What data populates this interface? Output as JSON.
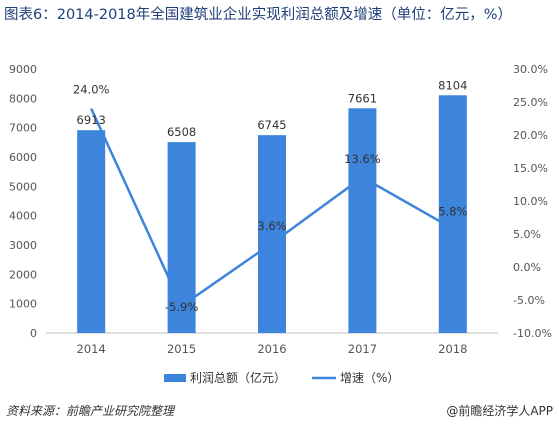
{
  "title": "图表6：2014-2018年全国建筑业企业实现利润总额及增速（单位：亿元，%）",
  "source": "资料来源：前瞻产业研究院整理",
  "brand": "@前瞻经济学人APP",
  "colors": {
    "bar": "#3c84dc",
    "line": "#3c84dc",
    "title": "#1f3f7a"
  },
  "chart_data": {
    "type": "bar",
    "title": "图表6：2014-2018年全国建筑业企业实现利润总额及增速（单位：亿元，%）",
    "categories": [
      "2014",
      "2015",
      "2016",
      "2017",
      "2018"
    ],
    "series": [
      {
        "name": "利润总额（亿元）",
        "type": "bar",
        "axis": "left",
        "values": [
          6913,
          6508,
          6745,
          7661,
          8104
        ],
        "labels": [
          "6913",
          "6508",
          "6745",
          "7661",
          "8104"
        ]
      },
      {
        "name": "增速（%）",
        "type": "line",
        "axis": "right",
        "values": [
          24.0,
          -5.9,
          3.6,
          13.6,
          5.8
        ],
        "labels": [
          "24.0%",
          "-5.9%",
          "3.6%",
          "13.6%",
          "5.8%"
        ]
      }
    ],
    "y_left": {
      "min": 0,
      "max": 9000,
      "ticks": [
        "0",
        "1000",
        "2000",
        "3000",
        "4000",
        "5000",
        "6000",
        "7000",
        "8000",
        "9000"
      ]
    },
    "y_right": {
      "min": -10,
      "max": 30,
      "ticks": [
        "-10.0%",
        "-5.0%",
        "0.0%",
        "5.0%",
        "10.0%",
        "15.0%",
        "20.0%",
        "25.0%",
        "30.0%"
      ]
    },
    "grid": false,
    "legend": "bottom"
  }
}
